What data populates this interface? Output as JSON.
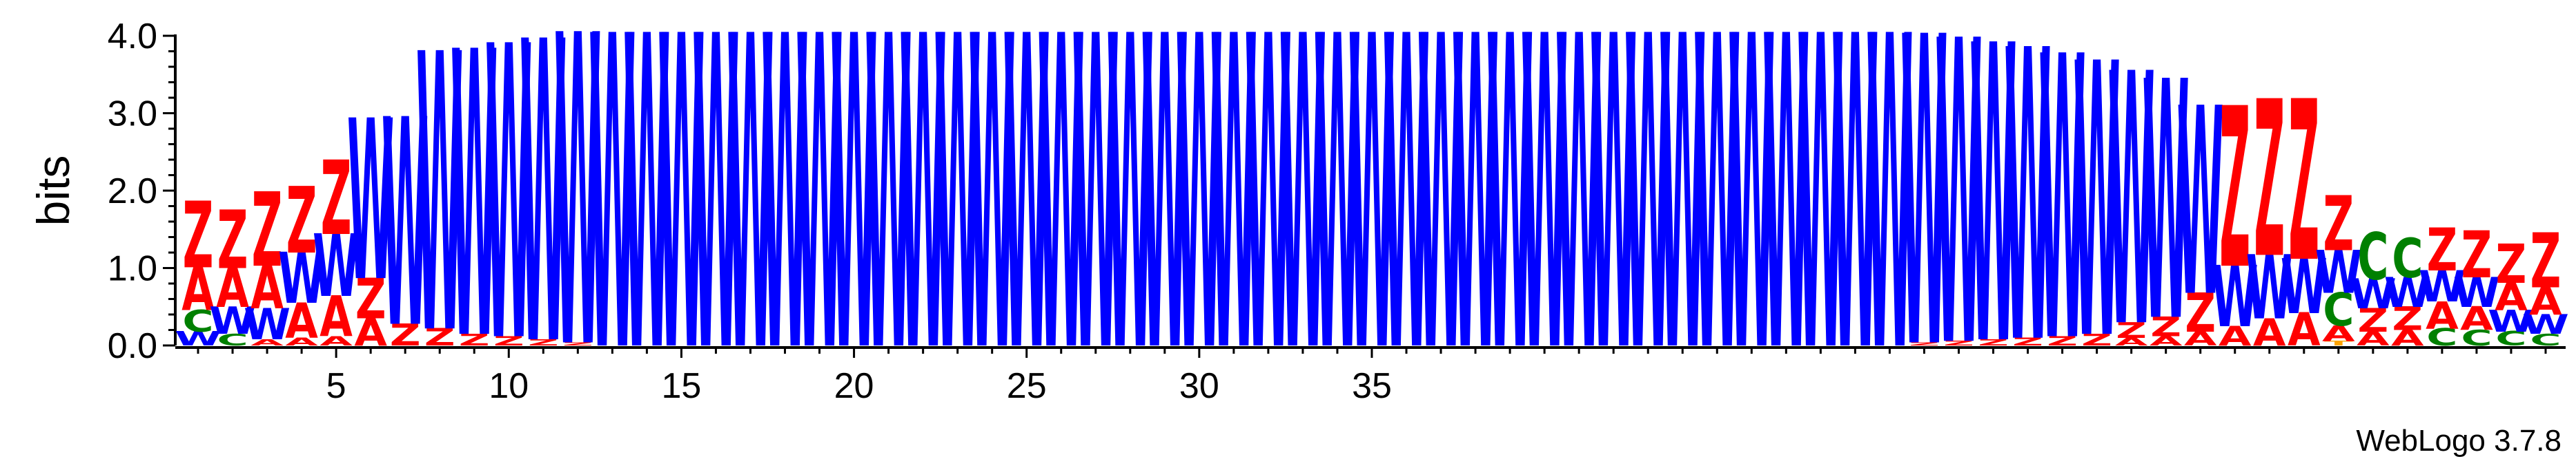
{
  "chart_data": {
    "type": "sequence-logo",
    "ylabel": "bits",
    "ylim": [
      0,
      4.0
    ],
    "yticks": [
      "0.0",
      "1.0",
      "2.0",
      "3.0",
      "4.0"
    ],
    "xticks": [
      5,
      10,
      15,
      20,
      25,
      30,
      35
    ],
    "credit": "WebLogo 3.7.8",
    "colors": {
      "Z": "#ff0000",
      "A": "#ff0000",
      "W": "#0000ff",
      "C": "#008000",
      "T": "#ffa500",
      "G": "#800080"
    },
    "positions": [
      [
        [
          "W",
          0.18
        ],
        [
          "C",
          0.28
        ],
        [
          "A",
          0.55
        ],
        [
          "Z",
          0.85
        ]
      ],
      [
        [
          "C",
          0.15
        ],
        [
          "W",
          0.35
        ],
        [
          "A",
          0.5
        ],
        [
          "Z",
          0.75
        ]
      ],
      [
        [
          "A",
          0.08
        ],
        [
          "W",
          0.4
        ],
        [
          "A",
          0.55
        ],
        [
          "Z",
          0.95
        ]
      ],
      [
        [
          "A",
          0.1
        ],
        [
          "A",
          0.45
        ],
        [
          "W",
          0.65
        ],
        [
          "Z",
          0.85
        ]
      ],
      [
        [
          "A",
          0.12
        ],
        [
          "A",
          0.52
        ],
        [
          "W",
          0.8
        ],
        [
          "Z",
          0.95
        ]
      ],
      [
        [
          "A",
          0.35
        ],
        [
          "Z",
          0.52
        ],
        [
          "W",
          2.05
        ]
      ],
      [
        [
          "Z",
          0.28
        ],
        [
          "W",
          2.65
        ]
      ],
      [
        [
          "Z",
          0.22
        ],
        [
          "W",
          3.55
        ]
      ],
      [
        [
          "Z",
          0.15
        ],
        [
          "W",
          3.65
        ]
      ],
      [
        [
          "Z",
          0.12
        ],
        [
          "W",
          3.75
        ]
      ],
      [
        [
          "Z",
          0.08
        ],
        [
          "W",
          3.85
        ]
      ],
      [
        [
          "Z",
          0.04
        ],
        [
          "W",
          3.97
        ]
      ],
      [
        [
          "W",
          4.0
        ]
      ],
      [
        [
          "W",
          4.0
        ]
      ],
      [
        [
          "W",
          4.0
        ]
      ],
      [
        [
          "W",
          4.0
        ]
      ],
      [
        [
          "W",
          4.0
        ]
      ],
      [
        [
          "W",
          4.0
        ]
      ],
      [
        [
          "W",
          4.0
        ]
      ],
      [
        [
          "W",
          4.0
        ]
      ],
      [
        [
          "W",
          4.0
        ]
      ],
      [
        [
          "W",
          4.0
        ]
      ],
      [
        [
          "W",
          4.0
        ]
      ],
      [
        [
          "W",
          4.0
        ]
      ],
      [
        [
          "W",
          4.0
        ]
      ],
      [
        [
          "W",
          4.0
        ]
      ],
      [
        [
          "W",
          4.0
        ]
      ],
      [
        [
          "W",
          4.0
        ]
      ],
      [
        [
          "W",
          4.0
        ]
      ],
      [
        [
          "W",
          4.0
        ]
      ],
      [
        [
          "W",
          4.0
        ]
      ],
      [
        [
          "W",
          4.0
        ]
      ],
      [
        [
          "W",
          4.0
        ]
      ],
      [
        [
          "W",
          4.0
        ]
      ],
      [
        [
          "W",
          4.0
        ]
      ],
      [
        [
          "W",
          4.0
        ]
      ],
      [
        [
          "W",
          4.0
        ]
      ],
      [
        [
          "W",
          4.0
        ]
      ],
      [
        [
          "W",
          4.0
        ]
      ],
      [
        [
          "W",
          4.0
        ]
      ],
      [
        [
          "W",
          4.0
        ]
      ],
      [
        [
          "W",
          4.0
        ]
      ],
      [
        [
          "W",
          4.0
        ]
      ],
      [
        [
          "W",
          4.0
        ]
      ],
      [
        [
          "W",
          4.0
        ]
      ],
      [
        [
          "W",
          4.0
        ]
      ],
      [
        [
          "W",
          4.0
        ]
      ],
      [
        [
          "W",
          4.0
        ]
      ],
      [
        [
          "W",
          4.0
        ]
      ],
      [
        [
          "W",
          4.0
        ]
      ],
      [
        [
          "Z",
          0.04
        ],
        [
          "W",
          3.95
        ]
      ],
      [
        [
          "Z",
          0.06
        ],
        [
          "W",
          3.88
        ]
      ],
      [
        [
          "Z",
          0.08
        ],
        [
          "W",
          3.8
        ]
      ],
      [
        [
          "Z",
          0.1
        ],
        [
          "W",
          3.72
        ]
      ],
      [
        [
          "Z",
          0.12
        ],
        [
          "W",
          3.62
        ]
      ],
      [
        [
          "Z",
          0.15
        ],
        [
          "W",
          3.5
        ]
      ],
      [
        [
          "A",
          0.1
        ],
        [
          "Z",
          0.2
        ],
        [
          "W",
          3.22
        ]
      ],
      [
        [
          "A",
          0.12
        ],
        [
          "Z",
          0.25
        ],
        [
          "W",
          3.05
        ]
      ],
      [
        [
          "A",
          0.18
        ],
        [
          "Z",
          0.5
        ],
        [
          "W",
          2.4
        ]
      ],
      [
        [
          "A",
          0.25
        ],
        [
          "W",
          0.78
        ],
        [
          "Z",
          2.05
        ]
      ],
      [
        [
          "A",
          0.35
        ],
        [
          "W",
          0.82
        ],
        [
          "Z",
          2.0
        ]
      ],
      [
        [
          "A",
          0.42
        ],
        [
          "W",
          0.7
        ],
        [
          "Z",
          2.05
        ]
      ],
      [
        [
          "T",
          0.06
        ],
        [
          "A",
          0.2
        ],
        [
          "C",
          0.42
        ],
        [
          "W",
          0.55
        ],
        [
          "Z",
          0.7
        ]
      ],
      [
        [
          "A",
          0.18
        ],
        [
          "Z",
          0.3
        ],
        [
          "W",
          0.38
        ],
        [
          "C",
          0.6
        ]
      ],
      [
        [
          "A",
          0.2
        ],
        [
          "Z",
          0.3
        ],
        [
          "W",
          0.38
        ],
        [
          "C",
          0.5
        ]
      ],
      [
        [
          "C",
          0.22
        ],
        [
          "A",
          0.35
        ],
        [
          "W",
          0.4
        ],
        [
          "Z",
          0.55
        ]
      ],
      [
        [
          "C",
          0.2
        ],
        [
          "A",
          0.3
        ],
        [
          "W",
          0.38
        ],
        [
          "Z",
          0.6
        ]
      ],
      [
        [
          "C",
          0.18
        ],
        [
          "W",
          0.28
        ],
        [
          "A",
          0.35
        ],
        [
          "Z",
          0.5
        ]
      ],
      [
        [
          "C",
          0.15
        ],
        [
          "W",
          0.25
        ],
        [
          "A",
          0.35
        ],
        [
          "Z",
          0.7
        ]
      ]
    ]
  }
}
